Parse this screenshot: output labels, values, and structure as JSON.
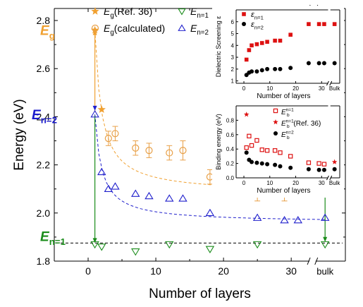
{
  "chart_data": [
    {
      "type": "scatter",
      "xlabel": "Number of layers",
      "ylabel": "Energy (eV)",
      "xlim": [
        -5,
        38
      ],
      "ylim": [
        1.8,
        2.85
      ],
      "x_ticks": [
        0,
        10,
        20,
        30
      ],
      "y_ticks": [
        1.8,
        2.0,
        2.2,
        2.4,
        2.6,
        2.8
      ],
      "bulk_label": "bulk",
      "legend": [
        {
          "symbol": "★",
          "prefix": "E",
          "sub": "g",
          "suffix": "(Ref. 36)"
        },
        {
          "symbol": "○",
          "prefix": "E",
          "sub": "g",
          "suffix": "(calculated)"
        },
        {
          "symbol": "▽",
          "prefix": "E",
          "sub": "n=1",
          "suffix": ""
        },
        {
          "symbol": "△",
          "prefix": "E",
          "sub": "n=2",
          "suffix": ""
        }
      ],
      "annotations": [
        {
          "main": "E",
          "sub": "g",
          "color": "#f0a030"
        },
        {
          "main": "E",
          "sub": "n=2",
          "color": "#1a1acc"
        },
        {
          "main": "E",
          "sub": "n=1",
          "color": "#1a8c1a"
        }
      ],
      "colors": {
        "eg": "#f0a030",
        "n2": "#2020cc",
        "n1": "#1a8c1a",
        "calc": "#e8a048"
      },
      "series": [
        {
          "key": "eg_ref",
          "x": [
            1,
            2,
            35
          ],
          "y": [
            2.76,
            2.43,
            2.1
          ]
        },
        {
          "key": "eg_calc",
          "x": [
            3,
            4,
            7,
            9,
            12,
            14,
            18,
            25,
            29,
            31
          ],
          "y": [
            2.31,
            2.33,
            2.27,
            2.26,
            2.25,
            2.26,
            2.15,
            2.1,
            2.1,
            2.1
          ],
          "err": [
            0.03,
            0.03,
            0.03,
            0.03,
            0.03,
            0.04,
            0.03,
            0.05,
            0.05,
            0.03
          ]
        },
        {
          "key": "n2",
          "x": [
            1,
            2,
            3,
            4,
            7,
            9,
            12,
            14,
            18,
            25,
            29,
            31,
            35
          ],
          "y": [
            2.41,
            2.17,
            2.1,
            2.11,
            2.08,
            2.07,
            2.06,
            2.06,
            2.0,
            1.98,
            1.97,
            1.97,
            1.98
          ]
        },
        {
          "key": "n1",
          "x": [
            1,
            2,
            7,
            12,
            18,
            25,
            35
          ],
          "y": [
            1.87,
            1.86,
            1.84,
            1.87,
            1.85,
            1.87,
            1.87
          ]
        }
      ]
    },
    {
      "type": "scatter",
      "xlabel": "Number of layers",
      "ylabel": "Dielectric Screening ε",
      "xlim": [
        -3,
        37
      ],
      "ylim": [
        0.8,
        7
      ],
      "x_ticks": [
        0,
        10,
        20,
        30
      ],
      "y_ticks": [
        1,
        2,
        3,
        4,
        5,
        6
      ],
      "bulk_label": "Bulk",
      "legend": [
        {
          "symbol": "■",
          "prefix": "ε",
          "sub": "n=1",
          "suffix": ""
        },
        {
          "symbol": "●",
          "prefix": "ε",
          "sub": "n=2",
          "suffix": ""
        }
      ],
      "series": [
        {
          "key": "eps1",
          "x": [
            1,
            2,
            3,
            5,
            7,
            9,
            12,
            14,
            18,
            25,
            29,
            31,
            35
          ],
          "y": [
            2.8,
            3.6,
            4.0,
            4.1,
            4.2,
            4.3,
            4.4,
            4.4,
            4.9,
            5.8,
            5.8,
            5.8,
            5.8
          ]
        },
        {
          "key": "eps2",
          "x": [
            1,
            2,
            3,
            5,
            7,
            9,
            12,
            14,
            18,
            25,
            29,
            31,
            35
          ],
          "y": [
            1.5,
            1.7,
            1.8,
            1.8,
            1.9,
            2.0,
            2.0,
            2.0,
            2.1,
            2.5,
            2.5,
            2.5,
            2.5
          ]
        }
      ]
    },
    {
      "type": "scatter",
      "xlabel": "Number of layers",
      "ylabel": "Binding energy (eV)",
      "xlim": [
        -3,
        37
      ],
      "ylim": [
        0,
        1.0
      ],
      "x_ticks": [
        0,
        10,
        20,
        30
      ],
      "y_ticks": [
        0.0,
        0.2,
        0.4,
        0.6,
        0.8
      ],
      "bulk_label": "Bulk",
      "legend": [
        {
          "symbol": "□",
          "prefix": "E",
          "sub": "b",
          "sup": "n=1",
          "suffix": ""
        },
        {
          "symbol": "★",
          "prefix": "E",
          "sub": "b",
          "sup": "n=1",
          "suffix": "(Ref. 36)"
        },
        {
          "symbol": "●",
          "prefix": "E",
          "sub": "b",
          "sup": "n=2",
          "suffix": ""
        }
      ],
      "series": [
        {
          "key": "b1",
          "x": [
            1,
            2,
            3,
            5,
            7,
            9,
            12,
            14,
            18,
            25,
            29,
            31
          ],
          "y": [
            0.42,
            0.58,
            0.45,
            0.52,
            0.39,
            0.38,
            0.38,
            0.35,
            0.3,
            0.21,
            0.2,
            0.19
          ]
        },
        {
          "key": "b1ref",
          "x": [
            1,
            35
          ],
          "y": [
            0.88,
            0.22
          ]
        },
        {
          "key": "b2",
          "x": [
            1,
            2,
            3,
            5,
            7,
            9,
            12,
            14,
            18,
            25,
            29,
            31,
            35
          ],
          "y": [
            0.35,
            0.25,
            0.22,
            0.21,
            0.2,
            0.19,
            0.18,
            0.16,
            0.14,
            0.12,
            0.11,
            0.11,
            0.12
          ]
        }
      ]
    }
  ]
}
